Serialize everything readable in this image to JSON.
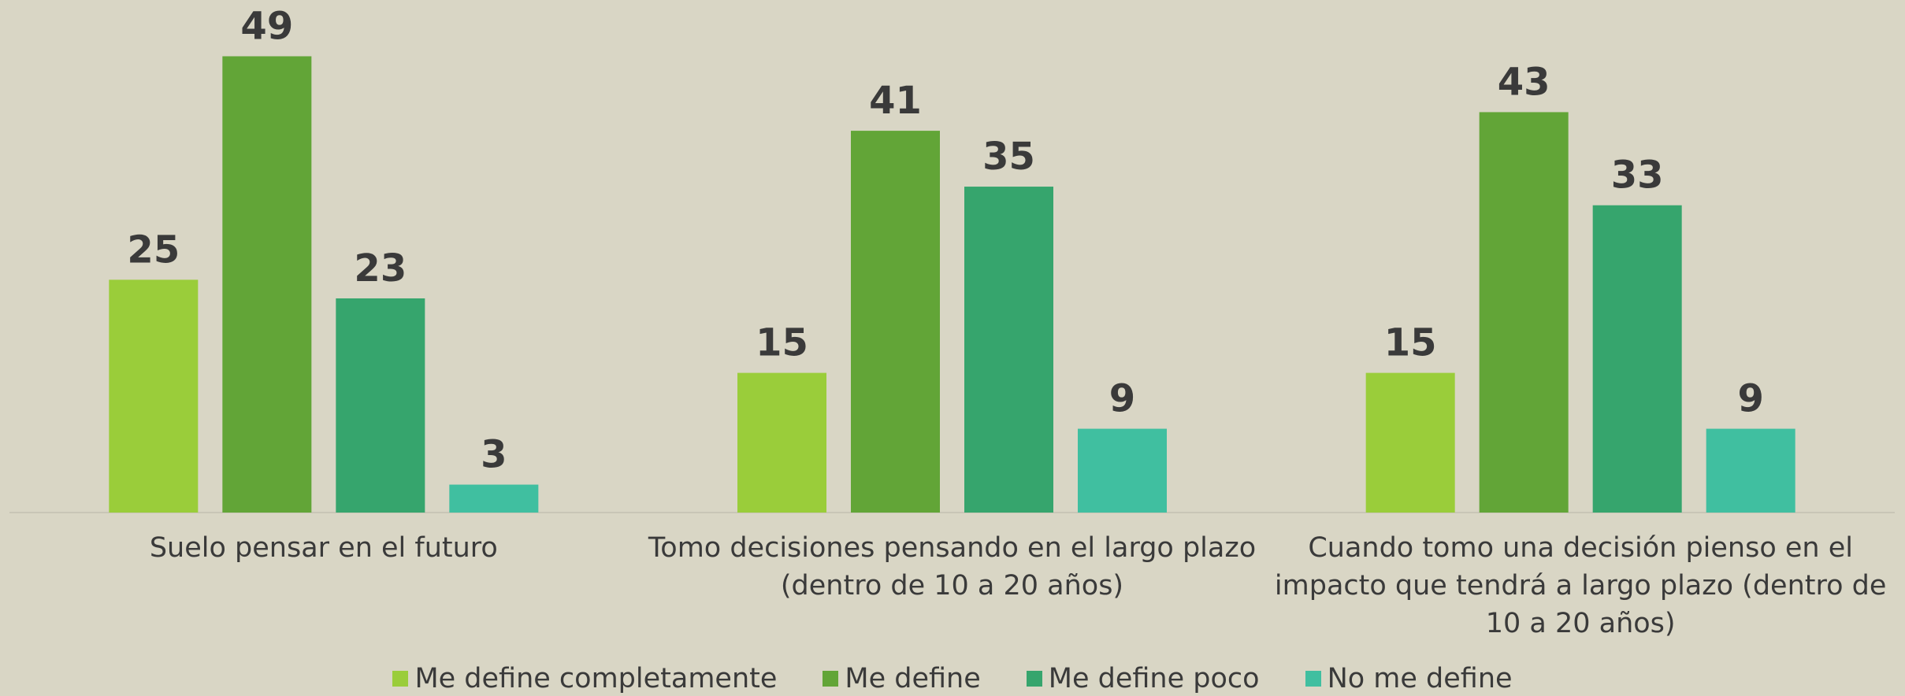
{
  "chart_data": {
    "type": "bar",
    "categories": [
      "Suelo pensar en el futuro",
      "Tomo decisiones pensando en el largo plazo (dentro de 10 a 20 años)",
      "Cuando tomo una decisión pienso en el impacto que tendrá a largo plazo (dentro de 10 a 20 años)"
    ],
    "series": [
      {
        "name": "Me define completamente",
        "color": "#9acd3a",
        "values": [
          25,
          15,
          15
        ]
      },
      {
        "name": "Me define",
        "color": "#62a537",
        "values": [
          49,
          41,
          43
        ]
      },
      {
        "name": "Me define poco",
        "color": "#36a56d",
        "values": [
          23,
          35,
          33
        ]
      },
      {
        "name": "No me define",
        "color": "#40bfa0",
        "values": [
          3,
          9,
          9
        ]
      }
    ],
    "ylim": [
      0,
      52
    ],
    "legend": "bottom"
  }
}
